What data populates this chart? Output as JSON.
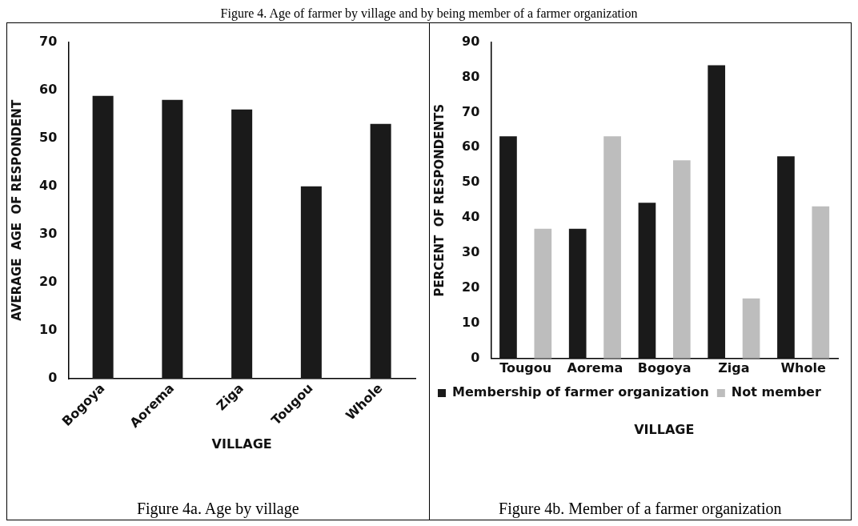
{
  "chart_data": [
    {
      "type": "bar",
      "title": "Figure 4. Age of farmer by village and by being member of a farmer organization",
      "xlabel": "VILLAGE",
      "ylabel": "AVERAGE  AGE  OF RESPONDENT",
      "categories": [
        "Bogoya",
        "Aorema",
        "Ziga",
        "Tougou",
        "Whole"
      ],
      "values": [
        58.8,
        58,
        56,
        40,
        53
      ],
      "color": "#1a1a1a",
      "ylim": [
        0,
        70
      ],
      "yticks": [
        0,
        10,
        20,
        30,
        40,
        50,
        60,
        70
      ],
      "grid": false,
      "legend": false,
      "annotations": [
        "Figure 4a. Age by village"
      ]
    },
    {
      "type": "bar",
      "xlabel": "VILLAGE",
      "ylabel": "PERCENT  OF RESPONDENTS",
      "categories": [
        "Tougou",
        "Aorema",
        "Bogoya",
        "Ziga",
        "Whole"
      ],
      "series": [
        {
          "name": "Membership of farmer organization",
          "color": "#1a1a1a",
          "values": [
            63.2,
            36.9,
            44.3,
            83.4,
            57.5
          ]
        },
        {
          "name": "Not member",
          "color": "#bdbdbd",
          "values": [
            36.9,
            63.2,
            56.4,
            17.1,
            43.3
          ]
        }
      ],
      "ylim": [
        0,
        90
      ],
      "yticks": [
        0,
        10,
        20,
        30,
        40,
        50,
        60,
        70,
        80,
        90
      ],
      "grid": false,
      "legend": "bottom",
      "annotations": [
        "Figure 4b. Member of a farmer organization"
      ]
    }
  ]
}
